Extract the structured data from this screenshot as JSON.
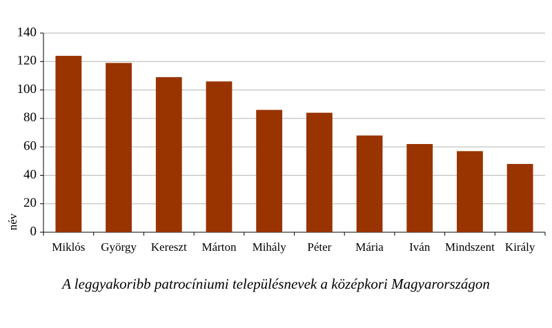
{
  "chart_data": {
    "type": "bar",
    "title": "A leggyakoribb patrocíniumi településnevek a középkori Magyarországon",
    "y_label": "név",
    "categories": [
      "Miklós",
      "György",
      "Kereszt",
      "Márton",
      "Mihály",
      "Péter",
      "Mária",
      "Iván",
      "Mindszent",
      "Király"
    ],
    "values": [
      124,
      119,
      109,
      106,
      86,
      84,
      68,
      62,
      57,
      48
    ],
    "color": "#993300",
    "ylim": [
      0,
      140
    ],
    "yticks": [
      0,
      20,
      40,
      60,
      80,
      100,
      120,
      140
    ],
    "grid": true
  }
}
